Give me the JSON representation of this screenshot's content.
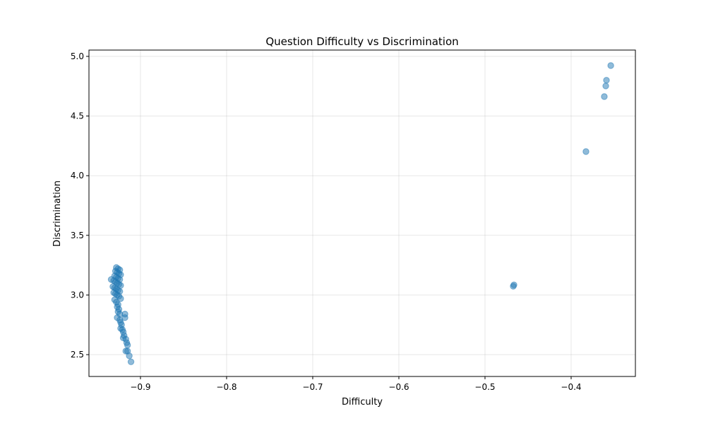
{
  "chart_data": {
    "type": "scatter",
    "title": "Question Difficulty vs Discrimination",
    "x_label": "Difficulty",
    "y_label": "Discrimination",
    "color": "#1f77b4",
    "alpha": 0.5,
    "grid": true,
    "xlim": [
      -0.9598,
      -0.3254
    ],
    "ylim": [
      2.317,
      5.053
    ],
    "xticks": [
      {
        "value": -0.9,
        "label": "−0.9"
      },
      {
        "value": -0.8,
        "label": "−0.8"
      },
      {
        "value": -0.7,
        "label": "−0.7"
      },
      {
        "value": -0.6,
        "label": "−0.6"
      },
      {
        "value": -0.5,
        "label": "−0.5"
      },
      {
        "value": -0.4,
        "label": "−0.4"
      }
    ],
    "yticks": [
      2.5,
      {
        "value": 3,
        "label": "3.0"
      },
      3.5,
      {
        "value": 4,
        "label": "4.0"
      },
      4.5,
      {
        "value": 5,
        "label": "5.0"
      }
    ],
    "x": [
      -0.928,
      -0.926,
      -0.924,
      -0.929,
      -0.927,
      -0.925,
      -0.923,
      -0.93,
      -0.928,
      -0.926,
      -0.924,
      -0.934,
      -0.931,
      -0.929,
      -0.927,
      -0.925,
      -0.923,
      -0.932,
      -0.93,
      -0.928,
      -0.926,
      -0.924,
      -0.931,
      -0.929,
      -0.927,
      -0.925,
      -0.923,
      -0.93,
      -0.928,
      -0.926,
      -0.927,
      -0.925,
      -0.926,
      -0.924,
      -0.918,
      -0.918,
      -0.927,
      -0.924,
      -0.923,
      -0.922,
      -0.923,
      -0.921,
      -0.92,
      -0.919,
      -0.92,
      -0.917,
      -0.916,
      -0.915,
      -0.917,
      -0.915,
      -0.913,
      -0.911,
      -0.354,
      -0.359,
      -0.3598,
      -0.3615,
      -0.3828,
      -0.4664,
      -0.4672
    ],
    "values": [
      3.23,
      3.22,
      3.21,
      3.2,
      3.19,
      3.18,
      3.17,
      3.16,
      3.15,
      3.14,
      3.13,
      3.13,
      3.12,
      3.11,
      3.1,
      3.09,
      3.08,
      3.07,
      3.06,
      3.05,
      3.04,
      3.03,
      3.02,
      3.01,
      3.0,
      2.99,
      2.97,
      2.96,
      2.94,
      2.92,
      2.9,
      2.88,
      2.86,
      2.84,
      2.84,
      2.81,
      2.81,
      2.79,
      2.77,
      2.75,
      2.72,
      2.71,
      2.69,
      2.66,
      2.64,
      2.63,
      2.6,
      2.58,
      2.53,
      2.53,
      2.49,
      2.44,
      4.923,
      4.8,
      4.752,
      4.663,
      4.202,
      3.085,
      3.073
    ]
  }
}
